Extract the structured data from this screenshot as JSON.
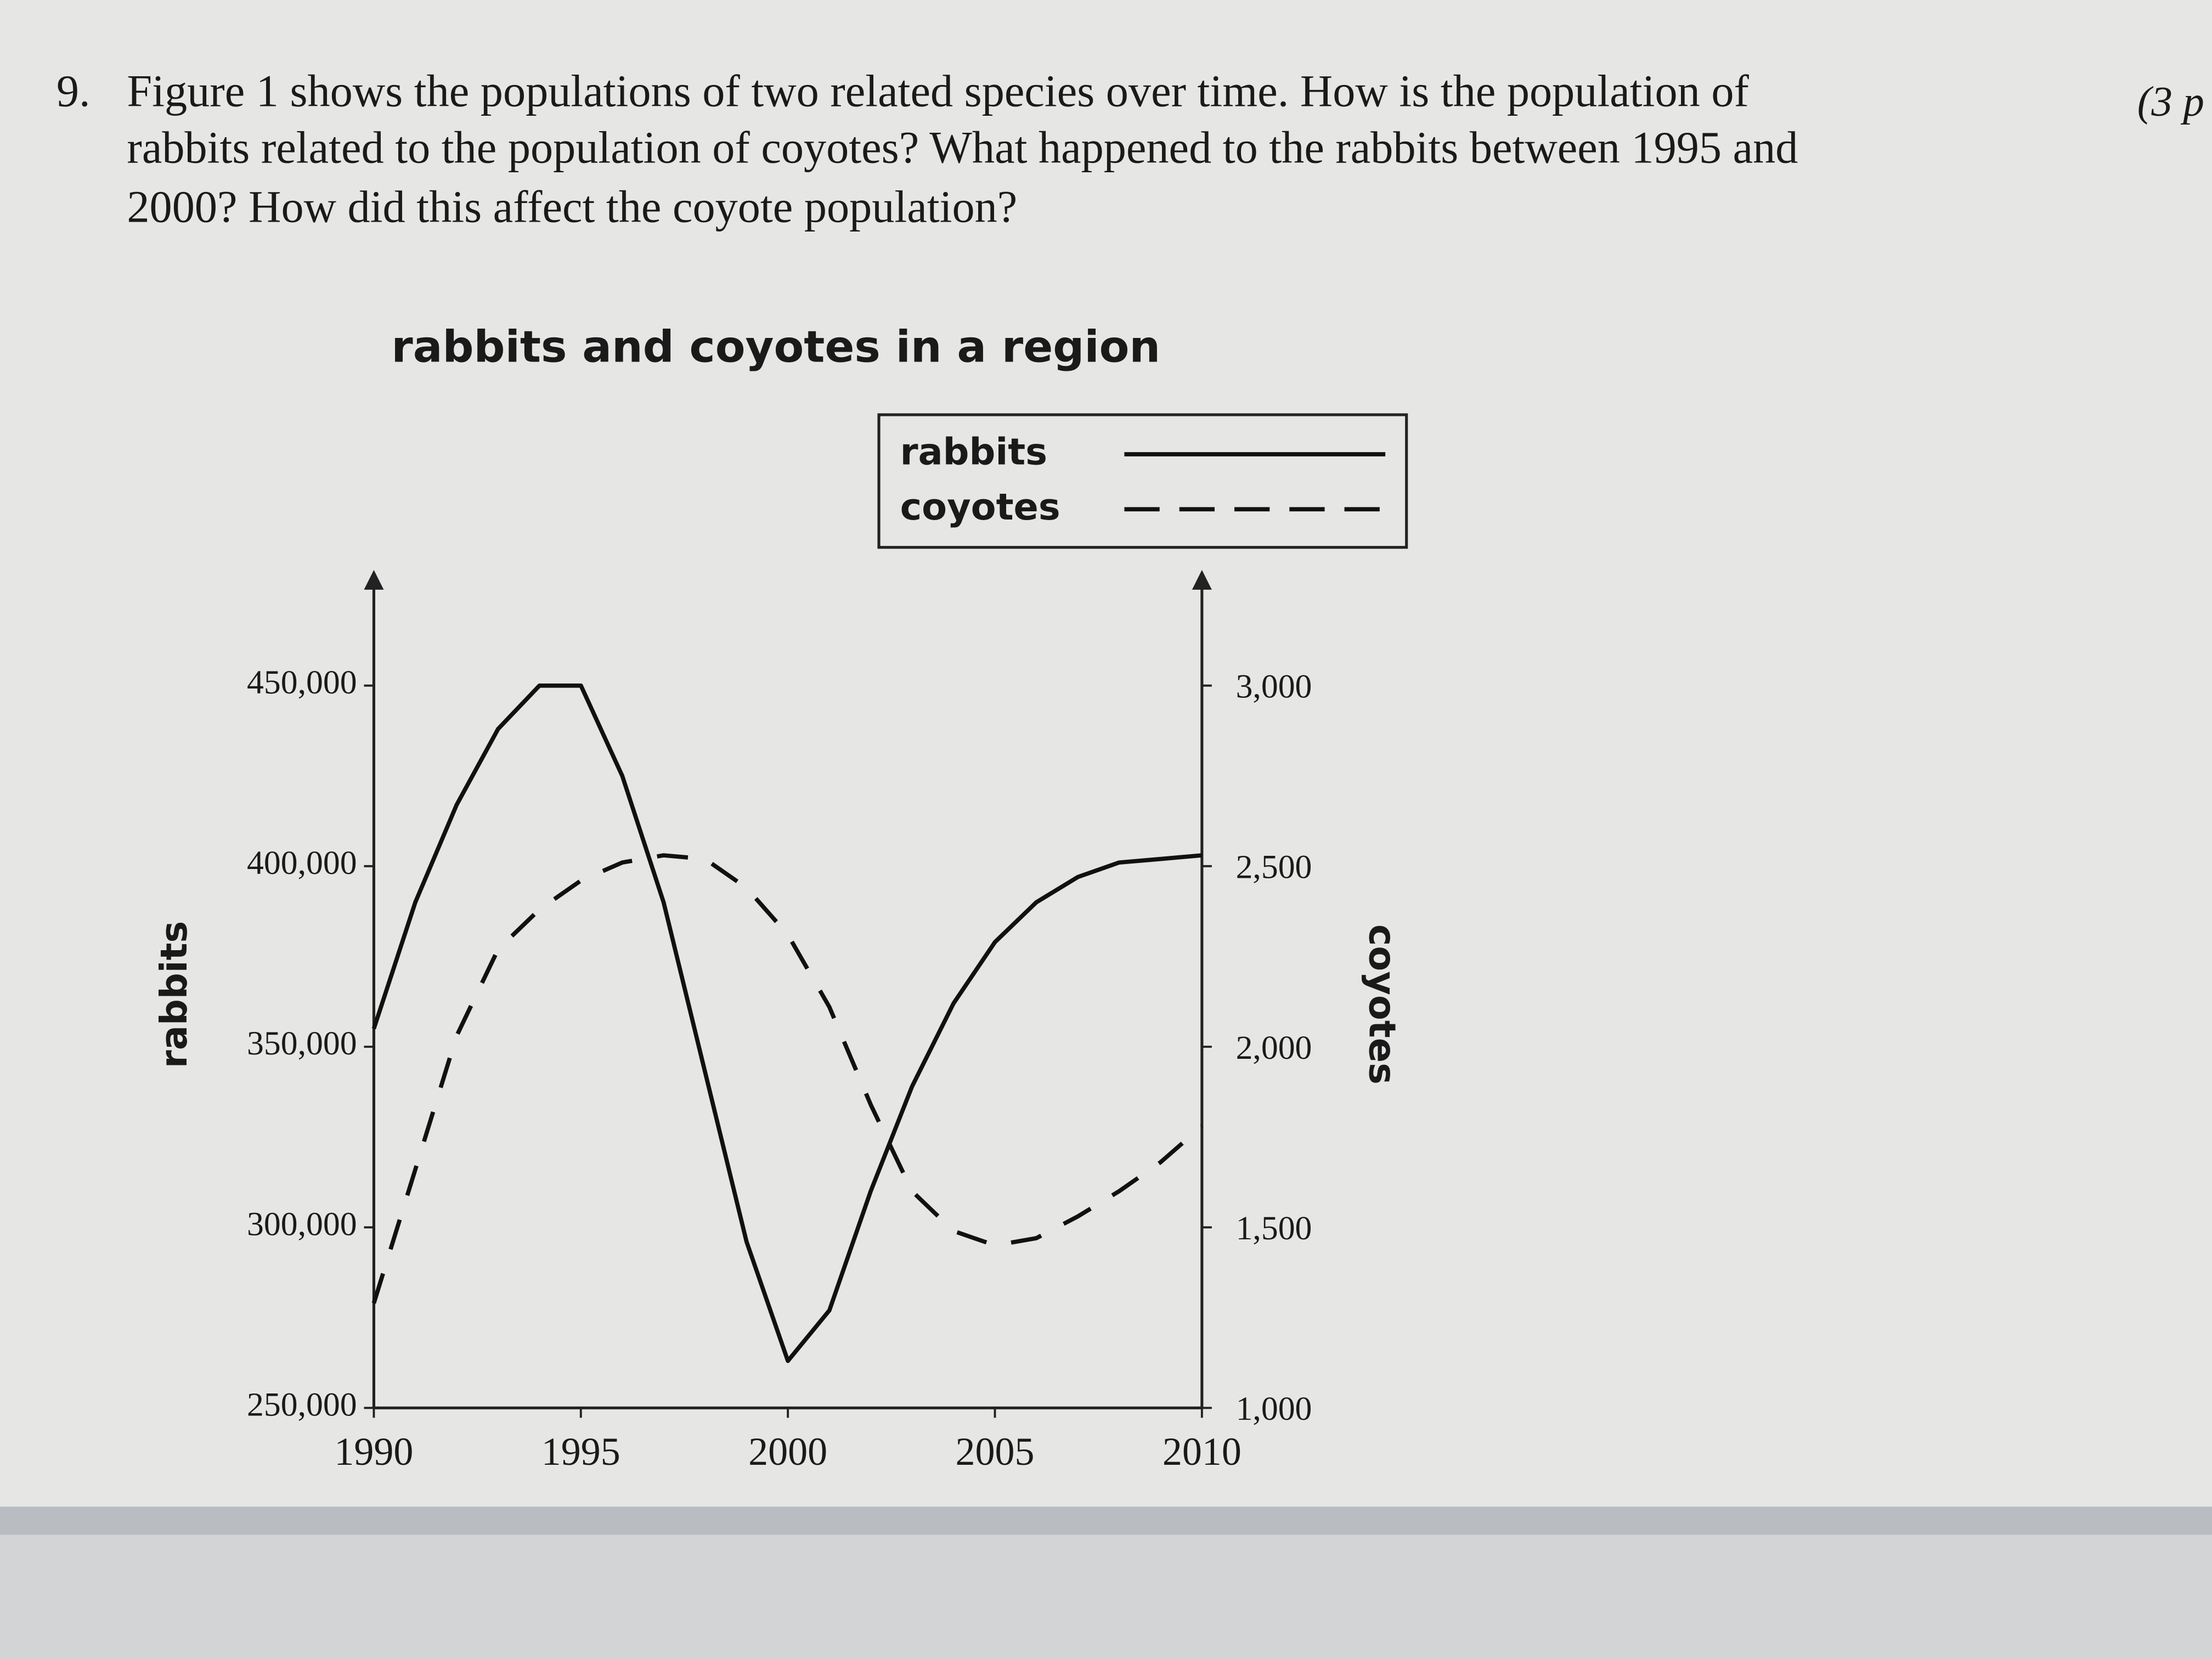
{
  "question": {
    "number": "9.",
    "lines": [
      "Figure 1 shows the populations of two related species over time. How is the population of",
      "rabbits related to the population of coyotes? What happened to the rabbits between 1995 and",
      "2000? How did this affect the coyote population?"
    ],
    "points": "(3 p"
  },
  "chart_data": {
    "type": "line",
    "title": "rabbits and coyotes in a region",
    "y_label": "rabbits",
    "y2_label": "coyotes",
    "x": [
      1990,
      1991,
      1992,
      1993,
      1994,
      1995,
      1996,
      1997,
      1998,
      1999,
      2000,
      2001,
      2002,
      2003,
      2004,
      2005,
      2006,
      2007,
      2008,
      2009,
      2010
    ],
    "xlim": [
      1990,
      2010
    ],
    "xticks": [
      1990,
      1995,
      2000,
      2005,
      2010
    ],
    "ylim": [
      250000,
      475000
    ],
    "yticks": [
      {
        "value": 250000,
        "label": "250,000"
      },
      {
        "value": 300000,
        "label": "300,000"
      },
      {
        "value": 350000,
        "label": "350,000"
      },
      {
        "value": 400000,
        "label": "400,000"
      },
      {
        "value": 450000,
        "label": "450,000"
      }
    ],
    "y2lim": [
      1000,
      3250
    ],
    "y2ticks": [
      {
        "value": 1000,
        "label": "1,000"
      },
      {
        "value": 1500,
        "label": "1,500"
      },
      {
        "value": 2000,
        "label": "2,000"
      },
      {
        "value": 2500,
        "label": "2,500"
      },
      {
        "value": 3000,
        "label": "3,000"
      }
    ],
    "legend": "top-right",
    "series": [
      {
        "name": "rabbits",
        "color": "#111111",
        "line_style": "solid",
        "values": [
          355000,
          390000,
          417000,
          438000,
          450000,
          450000,
          425000,
          390000,
          343000,
          296000,
          263000,
          277000,
          310000,
          339000,
          362000,
          379000,
          390000,
          397000,
          401000,
          402000,
          403000
        ]
      },
      {
        "name": "coyotes",
        "color": "#111111",
        "line_style": "dashed",
        "axis": "y2",
        "values": [
          1290,
          1660,
          2030,
          2270,
          2380,
          2460,
          2510,
          2530,
          2520,
          2440,
          2310,
          2110,
          1840,
          1600,
          1490,
          1450,
          1470,
          1530,
          1600,
          1680,
          1780
        ]
      }
    ]
  }
}
